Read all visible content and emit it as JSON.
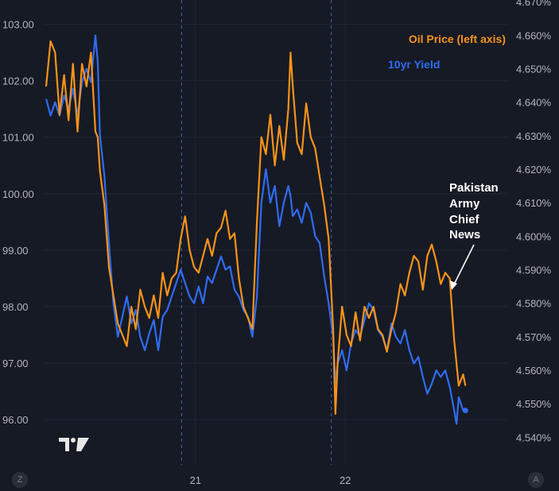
{
  "chart_data": {
    "type": "line",
    "title": "",
    "xlabel": "",
    "ylabel": "",
    "x_tick_labels": [
      {
        "label": "21",
        "t": 0.333
      },
      {
        "label": "22",
        "t": 0.667
      }
    ],
    "session_breaks": [
      0.302,
      0.636
    ],
    "y_left": {
      "ticks": [
        "103.00",
        "102.00",
        "101.00",
        "100.00",
        "99.00",
        "98.00",
        "97.00",
        "96.00"
      ],
      "range": [
        95.2,
        103.43
      ]
    },
    "y_right": {
      "ticks": [
        "4.670%",
        "4.660%",
        "4.650%",
        "4.640%",
        "4.630%",
        "4.620%",
        "4.610%",
        "4.600%",
        "4.590%",
        "4.580%",
        "4.570%",
        "4.560%",
        "4.550%",
        "4.540%"
      ],
      "range": [
        4.5318,
        4.6705
      ]
    },
    "series": [
      {
        "name": "Oil Price (left axis)",
        "axis": "left",
        "color": "#f7931a",
        "points": [
          [
            0.0,
            101.9
          ],
          [
            0.01,
            102.7
          ],
          [
            0.02,
            102.5
          ],
          [
            0.03,
            101.4
          ],
          [
            0.04,
            102.1
          ],
          [
            0.05,
            101.3
          ],
          [
            0.06,
            102.3
          ],
          [
            0.07,
            101.1
          ],
          [
            0.08,
            102.3
          ],
          [
            0.09,
            101.9
          ],
          [
            0.1,
            102.5
          ],
          [
            0.11,
            101.1
          ],
          [
            0.115,
            101.0
          ],
          [
            0.12,
            100.4
          ],
          [
            0.13,
            99.8
          ],
          [
            0.14,
            98.7
          ],
          [
            0.15,
            98.2
          ],
          [
            0.16,
            97.7
          ],
          [
            0.17,
            97.5
          ],
          [
            0.18,
            97.3
          ],
          [
            0.19,
            98.0
          ],
          [
            0.2,
            97.6
          ],
          [
            0.21,
            98.3
          ],
          [
            0.22,
            98.0
          ],
          [
            0.23,
            97.8
          ],
          [
            0.24,
            98.2
          ],
          [
            0.25,
            97.8
          ],
          [
            0.26,
            98.6
          ],
          [
            0.27,
            98.2
          ],
          [
            0.28,
            98.5
          ],
          [
            0.29,
            98.6
          ],
          [
            0.3,
            99.2
          ],
          [
            0.31,
            99.6
          ],
          [
            0.32,
            99.0
          ],
          [
            0.33,
            98.7
          ],
          [
            0.34,
            98.6
          ],
          [
            0.35,
            98.9
          ],
          [
            0.36,
            99.2
          ],
          [
            0.37,
            98.9
          ],
          [
            0.38,
            99.3
          ],
          [
            0.39,
            99.4
          ],
          [
            0.4,
            99.7
          ],
          [
            0.41,
            99.2
          ],
          [
            0.42,
            99.3
          ],
          [
            0.43,
            98.5
          ],
          [
            0.44,
            98.0
          ],
          [
            0.45,
            97.8
          ],
          [
            0.46,
            97.6
          ],
          [
            0.47,
            99.5
          ],
          [
            0.48,
            101.0
          ],
          [
            0.49,
            100.7
          ],
          [
            0.5,
            101.4
          ],
          [
            0.51,
            100.5
          ],
          [
            0.52,
            101.2
          ],
          [
            0.53,
            100.6
          ],
          [
            0.54,
            101.5
          ],
          [
            0.545,
            102.5
          ],
          [
            0.55,
            101.9
          ],
          [
            0.56,
            100.9
          ],
          [
            0.57,
            100.7
          ],
          [
            0.58,
            101.6
          ],
          [
            0.59,
            101.0
          ],
          [
            0.6,
            100.8
          ],
          [
            0.61,
            100.3
          ],
          [
            0.62,
            99.8
          ],
          [
            0.63,
            99.2
          ],
          [
            0.64,
            97.6
          ],
          [
            0.645,
            96.1
          ],
          [
            0.65,
            97.0
          ],
          [
            0.66,
            98.0
          ],
          [
            0.67,
            97.5
          ],
          [
            0.68,
            97.3
          ],
          [
            0.69,
            97.9
          ],
          [
            0.7,
            97.4
          ],
          [
            0.71,
            98.0
          ],
          [
            0.72,
            97.8
          ],
          [
            0.73,
            98.0
          ],
          [
            0.74,
            97.6
          ],
          [
            0.75,
            97.5
          ],
          [
            0.76,
            97.2
          ],
          [
            0.77,
            97.6
          ],
          [
            0.78,
            97.9
          ],
          [
            0.79,
            98.4
          ],
          [
            0.8,
            98.2
          ],
          [
            0.81,
            98.6
          ],
          [
            0.82,
            98.9
          ],
          [
            0.83,
            98.8
          ],
          [
            0.84,
            98.3
          ],
          [
            0.85,
            98.9
          ],
          [
            0.86,
            99.1
          ],
          [
            0.87,
            98.8
          ],
          [
            0.88,
            98.4
          ],
          [
            0.89,
            98.6
          ],
          [
            0.9,
            98.5
          ],
          [
            0.91,
            97.4
          ],
          [
            0.915,
            97.0
          ],
          [
            0.92,
            96.6
          ],
          [
            0.93,
            96.8
          ],
          [
            0.935,
            96.6
          ]
        ]
      },
      {
        "name": "10yr Yield",
        "axis": "right",
        "color": "#2f6cf2",
        "points": [
          [
            0.0,
            4.641
          ],
          [
            0.01,
            4.636
          ],
          [
            0.02,
            4.64
          ],
          [
            0.03,
            4.636
          ],
          [
            0.04,
            4.642
          ],
          [
            0.05,
            4.638
          ],
          [
            0.06,
            4.644
          ],
          [
            0.07,
            4.636
          ],
          [
            0.08,
            4.646
          ],
          [
            0.09,
            4.65
          ],
          [
            0.1,
            4.646
          ],
          [
            0.11,
            4.66
          ],
          [
            0.115,
            4.652
          ],
          [
            0.12,
            4.63
          ],
          [
            0.13,
            4.618
          ],
          [
            0.14,
            4.598
          ],
          [
            0.15,
            4.58
          ],
          [
            0.16,
            4.57
          ],
          [
            0.17,
            4.576
          ],
          [
            0.18,
            4.582
          ],
          [
            0.19,
            4.574
          ],
          [
            0.2,
            4.578
          ],
          [
            0.21,
            4.57
          ],
          [
            0.22,
            4.566
          ],
          [
            0.23,
            4.571
          ],
          [
            0.24,
            4.575
          ],
          [
            0.25,
            4.566
          ],
          [
            0.26,
            4.576
          ],
          [
            0.27,
            4.578
          ],
          [
            0.28,
            4.582
          ],
          [
            0.29,
            4.586
          ],
          [
            0.3,
            4.59
          ],
          [
            0.31,
            4.586
          ],
          [
            0.32,
            4.582
          ],
          [
            0.33,
            4.58
          ],
          [
            0.34,
            4.585
          ],
          [
            0.35,
            4.58
          ],
          [
            0.36,
            4.588
          ],
          [
            0.37,
            4.586
          ],
          [
            0.38,
            4.59
          ],
          [
            0.39,
            4.594
          ],
          [
            0.4,
            4.59
          ],
          [
            0.41,
            4.591
          ],
          [
            0.42,
            4.584
          ],
          [
            0.43,
            4.582
          ],
          [
            0.44,
            4.578
          ],
          [
            0.45,
            4.576
          ],
          [
            0.46,
            4.57
          ],
          [
            0.47,
            4.582
          ],
          [
            0.48,
            4.61
          ],
          [
            0.49,
            4.62
          ],
          [
            0.5,
            4.61
          ],
          [
            0.51,
            4.615
          ],
          [
            0.52,
            4.603
          ],
          [
            0.53,
            4.61
          ],
          [
            0.54,
            4.615
          ],
          [
            0.545,
            4.612
          ],
          [
            0.55,
            4.606
          ],
          [
            0.56,
            4.608
          ],
          [
            0.57,
            4.604
          ],
          [
            0.58,
            4.61
          ],
          [
            0.59,
            4.607
          ],
          [
            0.6,
            4.6
          ],
          [
            0.61,
            4.598
          ],
          [
            0.62,
            4.588
          ],
          [
            0.63,
            4.58
          ],
          [
            0.64,
            4.57
          ],
          [
            0.645,
            4.556
          ],
          [
            0.65,
            4.562
          ],
          [
            0.66,
            4.566
          ],
          [
            0.67,
            4.56
          ],
          [
            0.68,
            4.568
          ],
          [
            0.69,
            4.572
          ],
          [
            0.7,
            4.57
          ],
          [
            0.71,
            4.575
          ],
          [
            0.72,
            4.58
          ],
          [
            0.73,
            4.578
          ],
          [
            0.74,
            4.572
          ],
          [
            0.75,
            4.57
          ],
          [
            0.76,
            4.566
          ],
          [
            0.77,
            4.574
          ],
          [
            0.78,
            4.57
          ],
          [
            0.79,
            4.568
          ],
          [
            0.8,
            4.572
          ],
          [
            0.81,
            4.566
          ],
          [
            0.82,
            4.562
          ],
          [
            0.83,
            4.564
          ],
          [
            0.84,
            4.558
          ],
          [
            0.85,
            4.553
          ],
          [
            0.86,
            4.556
          ],
          [
            0.87,
            4.56
          ],
          [
            0.88,
            4.558
          ],
          [
            0.89,
            4.56
          ],
          [
            0.9,
            4.555
          ],
          [
            0.91,
            4.548
          ],
          [
            0.915,
            4.544
          ],
          [
            0.92,
            4.552
          ],
          [
            0.93,
            4.548
          ],
          [
            0.935,
            4.548
          ]
        ]
      }
    ],
    "annotation": {
      "text": [
        "Pakistan",
        "Army",
        "Chief",
        "News"
      ]
    },
    "grid": true,
    "legend_position": "top-right"
  },
  "ui": {
    "logo_text": "TV",
    "left_corner_button": "Z",
    "right_corner_button": "A"
  }
}
